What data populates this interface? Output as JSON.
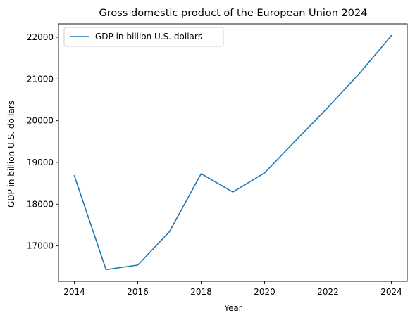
{
  "chart_data": {
    "type": "line",
    "title": "Gross domestic product of the European Union 2024",
    "xlabel": "Year",
    "ylabel": "GDP in billion U.S. dollars",
    "x": [
      2014,
      2015,
      2016,
      2017,
      2018,
      2019,
      2020,
      2021,
      2022,
      2023,
      2024
    ],
    "series": [
      {
        "name": "GDP in billion U.S. dollars",
        "color": "#1f77b4",
        "values": [
          18680,
          16430,
          16540,
          17340,
          18730,
          18290,
          18750,
          19540,
          20320,
          21140,
          22040
        ]
      }
    ],
    "xticks": [
      2014,
      2016,
      2018,
      2020,
      2022,
      2024
    ],
    "yticks": [
      17000,
      18000,
      19000,
      20000,
      21000,
      22000
    ],
    "xlim": [
      2013.5,
      2024.5
    ],
    "ylim": [
      16150,
      22320
    ],
    "grid": false,
    "legend_position": "top-left"
  }
}
